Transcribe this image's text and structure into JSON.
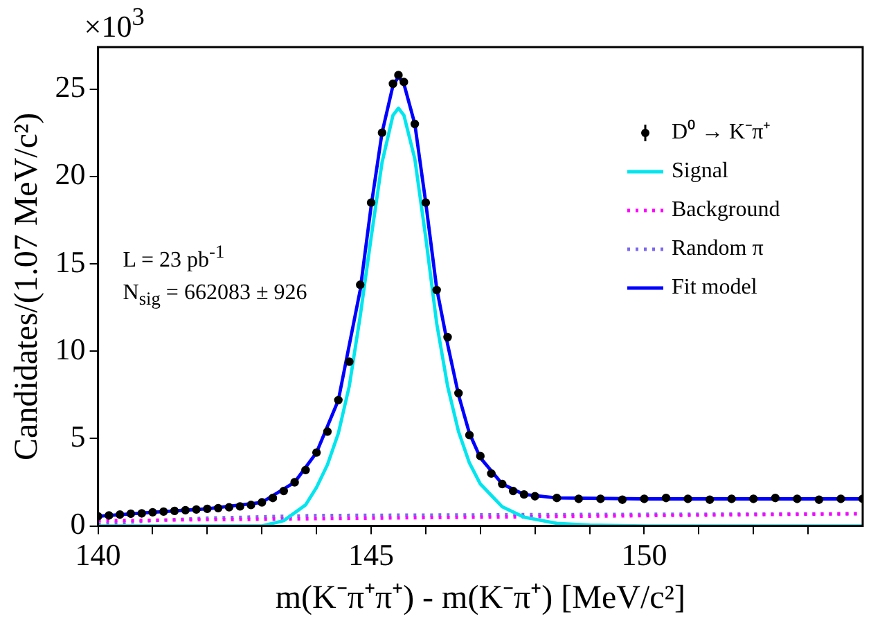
{
  "chart_data": {
    "type": "line",
    "xlabel": "m(K⁻π⁺π⁺) - m(K⁻π⁺) [MeV/c²]",
    "ylabel": "Candidates/(1.07 MeV/c²)",
    "annotations": [
      "×10$^{3}$",
      "L = 23 pb$^{-1}$",
      "N$_{sig}$ = 662083 ± 926"
    ],
    "xlim": [
      140,
      154
    ],
    "xticks": [
      140,
      {
        "value": 141,
        "label": null
      },
      {
        "value": 142,
        "label": null
      },
      {
        "value": 143,
        "label": null
      },
      {
        "value": 144,
        "label": null
      },
      145,
      {
        "value": 146,
        "label": null
      },
      {
        "value": 147,
        "label": null
      },
      {
        "value": 148,
        "label": null
      },
      {
        "value": 149,
        "label": null
      },
      150,
      {
        "value": 151,
        "label": null
      },
      {
        "value": 152,
        "label": null
      },
      {
        "value": 153,
        "label": null
      }
    ],
    "ylim": [
      0,
      27.4
    ],
    "yticks": [
      0,
      5,
      10,
      15,
      20,
      25
    ],
    "grid": false,
    "legend": "top right",
    "series": [
      {
        "name": "D⁰ → K⁻π⁺",
        "type": "scatter",
        "marker": "circle",
        "color": "#000000",
        "x": [
          140.0,
          140.2,
          140.4,
          140.6,
          140.8,
          141.0,
          141.2,
          141.4,
          141.6,
          141.8,
          142.0,
          142.2,
          142.4,
          142.6,
          142.8,
          143.0,
          143.2,
          143.4,
          143.6,
          143.8,
          144.0,
          144.2,
          144.4,
          144.6,
          144.8,
          145.0,
          145.2,
          145.4,
          145.5,
          145.6,
          145.8,
          146.0,
          146.2,
          146.4,
          146.6,
          146.8,
          147.0,
          147.2,
          147.4,
          147.6,
          147.8,
          148.0,
          148.4,
          148.8,
          149.2,
          149.6,
          150.0,
          150.4,
          150.8,
          151.2,
          151.6,
          152.0,
          152.4,
          152.8,
          153.2,
          153.6,
          154.0
        ],
        "values": [
          0.55,
          0.6,
          0.65,
          0.7,
          0.72,
          0.78,
          0.82,
          0.86,
          0.9,
          0.94,
          0.98,
          1.02,
          1.07,
          1.12,
          1.2,
          1.35,
          1.6,
          2.0,
          2.5,
          3.2,
          4.2,
          5.4,
          7.2,
          9.4,
          13.8,
          18.5,
          22.5,
          25.3,
          25.8,
          25.4,
          23.0,
          18.5,
          13.5,
          10.8,
          7.6,
          5.2,
          4.0,
          3.0,
          2.4,
          2.0,
          1.8,
          1.7,
          1.6,
          1.55,
          1.55,
          1.5,
          1.55,
          1.6,
          1.55,
          1.5,
          1.55,
          1.55,
          1.6,
          1.55,
          1.5,
          1.55,
          1.55
        ]
      },
      {
        "name": "Signal",
        "marker": "none",
        "line_style": "solid",
        "color": "#00e5ee",
        "x": [
          140,
          142,
          143.0,
          143.4,
          143.8,
          144.0,
          144.2,
          144.4,
          144.6,
          144.8,
          145.0,
          145.2,
          145.4,
          145.5,
          145.6,
          145.8,
          146.0,
          146.2,
          146.4,
          146.6,
          146.8,
          147.0,
          147.4,
          147.8,
          148.4,
          149.0,
          150,
          154
        ],
        "values": [
          0,
          0,
          0,
          0.3,
          1.2,
          2.2,
          3.5,
          5.3,
          8.0,
          12.0,
          16.5,
          20.8,
          23.5,
          23.9,
          23.5,
          21.0,
          16.5,
          11.6,
          8.0,
          5.4,
          3.6,
          2.4,
          1.1,
          0.5,
          0.15,
          0.05,
          0,
          0
        ]
      },
      {
        "name": "Background",
        "marker": "none",
        "line_style": "dotted",
        "color": "#ff00ff",
        "x": [
          140,
          154
        ],
        "values": [
          0.3,
          0.7
        ]
      },
      {
        "name": "Random π",
        "marker": "none",
        "line_style": "dotted",
        "color": "#7b68ee",
        "x": [
          140,
          141,
          142,
          144,
          148,
          154
        ],
        "values": [
          0.1,
          0.3,
          0.45,
          0.6,
          0.65,
          0.7
        ]
      },
      {
        "name": "Fit model",
        "marker": "none",
        "line_style": "solid",
        "color": "#0000ff",
        "x": [
          140,
          141,
          142,
          143,
          143.6,
          144,
          144.4,
          144.8,
          145.0,
          145.2,
          145.4,
          145.5,
          145.6,
          145.8,
          146.0,
          146.2,
          146.4,
          146.6,
          146.8,
          147.0,
          147.4,
          147.8,
          148.4,
          150,
          154
        ],
        "values": [
          0.55,
          0.78,
          0.98,
          1.35,
          2.5,
          4.2,
          7.2,
          13.5,
          18.3,
          22.5,
          25.2,
          25.7,
          25.3,
          23.0,
          18.5,
          13.6,
          10.4,
          7.5,
          5.3,
          3.9,
          2.4,
          1.8,
          1.6,
          1.55,
          1.55
        ]
      }
    ]
  }
}
